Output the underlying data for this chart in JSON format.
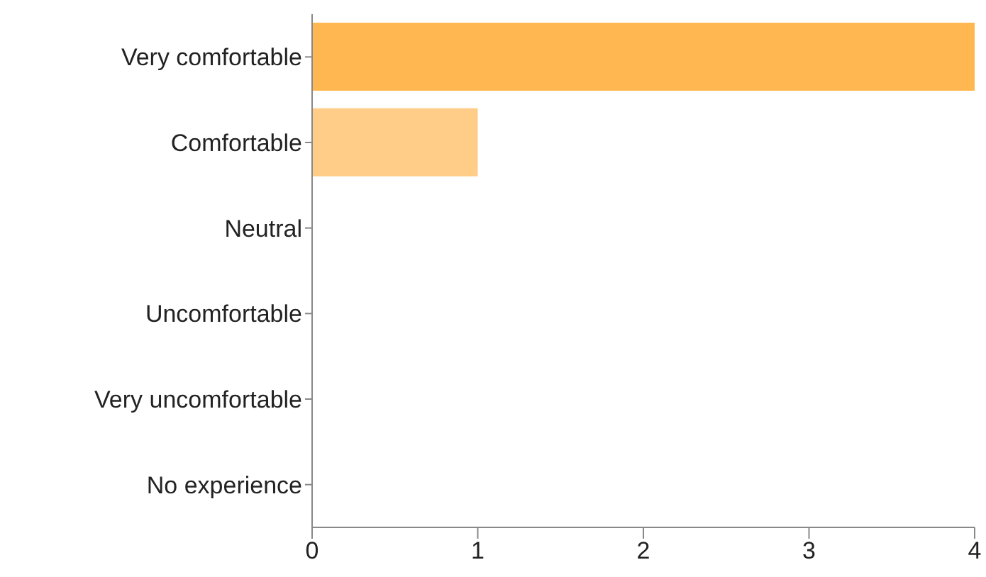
{
  "chart_data": {
    "type": "bar",
    "orientation": "horizontal",
    "categories": [
      "Very comfortable",
      "Comfortable",
      "Neutral",
      "Uncomfortable",
      "Very uncomfortable",
      "No experience"
    ],
    "values": [
      4,
      1,
      0,
      0,
      0,
      0
    ],
    "colors": [
      "#ffb851",
      "#ffcd87",
      "#ffdca8",
      "#ffe6c0",
      "#fff0d9",
      "#fff5e8"
    ],
    "xlim": [
      0,
      4
    ],
    "xticks": [
      0,
      1,
      2,
      3,
      4
    ],
    "grid": false,
    "legend": false
  }
}
